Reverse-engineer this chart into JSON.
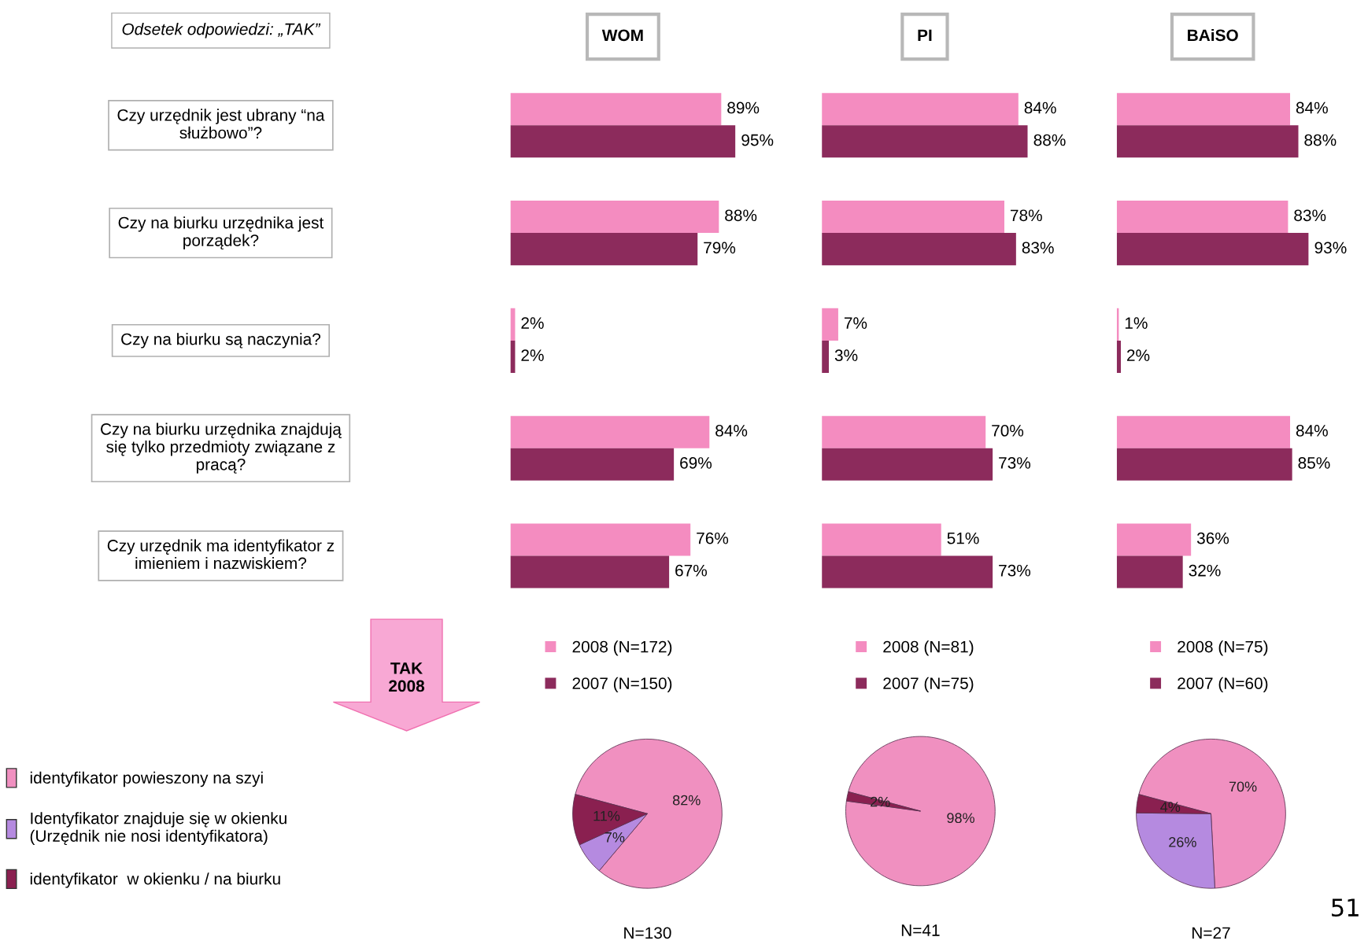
{
  "chart_data": [
    {
      "type": "bar",
      "orientation": "horizontal",
      "title": "WOM",
      "legend": "bottom",
      "categories": [
        "Czy urzędnik jest ubrany “na\nsłużbowo”?",
        "Czy na biurku urzędnika jest\nporządek?",
        "Czy na biurku są naczynia?",
        "Czy na biurku urzędnika znajdują\nsię tylko przedmioty związane z\npracą?",
        "Czy urzędnik ma identyfikator z\nimieniem i nazwiskiem?"
      ],
      "series": [
        {
          "name": "2008 (N=172)",
          "color": "#f48cc0",
          "values": [
            89,
            88,
            2,
            84,
            76
          ],
          "value_labels": [
            "89%",
            "88%",
            "2%",
            "84%",
            "76%"
          ]
        },
        {
          "name": "2007 (N=150)",
          "color": "#8c2b5c",
          "values": [
            95,
            79,
            2,
            69,
            67
          ],
          "value_labels": [
            "95%",
            "79%",
            "2%",
            "69%",
            "67%"
          ]
        }
      ],
      "annotations": [
        "Odsetek odpowiedzi: „TAK”",
        "TAK\n2008",
        "51"
      ]
    },
    {
      "type": "bar",
      "orientation": "horizontal",
      "title": "PI",
      "legend": "bottom",
      "categories": [
        null,
        null,
        null,
        null,
        null
      ],
      "series": [
        {
          "name": "2008 (N=81)",
          "color": "#f48cc0",
          "values": [
            84,
            78,
            7,
            70,
            51
          ],
          "value_labels": [
            "84%",
            "78%",
            "7%",
            "70%",
            "51%"
          ]
        },
        {
          "name": "2007 (N=75)",
          "color": "#8c2b5c",
          "values": [
            88,
            83,
            3,
            73,
            73
          ],
          "value_labels": [
            "88%",
            "83%",
            "3%",
            "73%",
            "73%"
          ]
        }
      ]
    },
    {
      "type": "bar",
      "orientation": "horizontal",
      "title": "BAiSO",
      "legend": "bottom",
      "categories": [
        null,
        null,
        null,
        null,
        null
      ],
      "series": [
        {
          "name": "2008 (N=75)",
          "color": "#f48cc0",
          "values": [
            84,
            83,
            1,
            84,
            36
          ],
          "value_labels": [
            "84%",
            "83%",
            "1%",
            "84%",
            "36%"
          ]
        },
        {
          "name": "2007 (N=60)",
          "color": "#8c2b5c",
          "values": [
            88,
            93,
            2,
            85,
            32
          ],
          "value_labels": [
            "88%",
            "93%",
            "2%",
            "85%",
            "32%"
          ]
        }
      ]
    },
    {
      "type": "pie",
      "xlabel": "N=130",
      "legend": "left",
      "categories": [
        "identyfikator powieszony na szyi",
        "Identyfikator znajduje się w okienku\n(Urzędnik nie nosi identyfikatora)",
        "identyfikator  w okienku / na biurku"
      ],
      "values": [
        82,
        7,
        11
      ],
      "colors": [
        "#f090c0",
        "#b58ae0",
        "#8a2050"
      ],
      "value_labels": [
        "82%",
        "7%",
        "11%"
      ]
    },
    {
      "type": "pie",
      "xlabel": "N=41",
      "categories": [
        null,
        null
      ],
      "values": [
        98,
        2
      ],
      "colors": [
        "#f090c0",
        "#8a2050"
      ],
      "value_labels": [
        "98%",
        "2%"
      ]
    },
    {
      "type": "pie",
      "xlabel": "N=27",
      "categories": [
        null,
        null,
        null
      ],
      "values": [
        70,
        26,
        4
      ],
      "colors": [
        "#f090c0",
        "#b58ae0",
        "#8a2050"
      ],
      "value_labels": [
        "70%",
        "26%",
        "4%"
      ]
    }
  ]
}
